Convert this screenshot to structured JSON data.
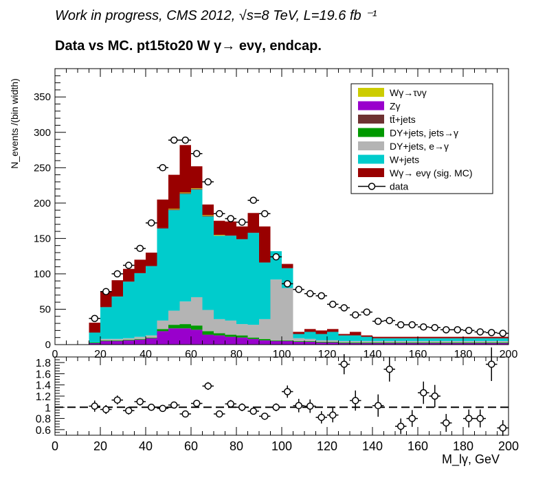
{
  "header": {
    "line1": "Work in progress, CMS 2012,   √s=8 TeV, L=19.6 fb ⁻¹",
    "line2": "Data vs MC.    pt15to20 W  γ→ eνγ, endcap."
  },
  "chart_data": [
    {
      "type": "bar",
      "subtype": "stacked-histogram",
      "ylabel": "N_events /(bin width)",
      "xlim": [
        0,
        200
      ],
      "ylim": [
        0,
        390
      ],
      "bin_edges": [
        15,
        20,
        25,
        30,
        35,
        40,
        45,
        50,
        55,
        60,
        65,
        70,
        75,
        80,
        85,
        90,
        95,
        100,
        105,
        110,
        115,
        120,
        125,
        130,
        135,
        140,
        145,
        150,
        155,
        160,
        165,
        170,
        175,
        180,
        185,
        190,
        195,
        200
      ],
      "x_ticks": [
        "0",
        "20",
        "40",
        "60",
        "80",
        "100",
        "120",
        "140",
        "160",
        "180",
        "200"
      ],
      "y_ticks": [
        "0",
        "50",
        "100",
        "150",
        "200",
        "250",
        "300",
        "350"
      ],
      "legend_position": "top-right",
      "series": [
        {
          "name": "W+jets",
          "color": "#00cccc",
          "stack_order": 3,
          "values": [
            14,
            45,
            60,
            80,
            90,
            98,
            130,
            142,
            152,
            152,
            132,
            118,
            120,
            120,
            130,
            80,
            40,
            28,
            6,
            10,
            9,
            12,
            8,
            8,
            6,
            4,
            4,
            4,
            4,
            4,
            4,
            4,
            4,
            4,
            4,
            4,
            4
          ]
        },
        {
          "name": "DY+jets, e→γ",
          "color": "#b4b4b4",
          "stack_order": 2,
          "values": [
            0,
            2,
            2,
            2,
            3,
            3,
            12,
            20,
            32,
            40,
            30,
            20,
            20,
            16,
            18,
            28,
            86,
            74,
            4,
            3,
            2,
            2,
            2,
            2,
            2,
            2,
            2,
            2,
            2,
            2,
            2,
            2,
            2,
            2,
            2,
            2,
            2
          ]
        },
        {
          "name": "DY+jets, jets→γ",
          "color": "#009900",
          "stack_order": 1,
          "values": [
            1,
            1,
            1,
            1,
            1,
            1,
            3,
            5,
            6,
            6,
            5,
            3,
            3,
            3,
            2,
            2,
            1,
            1,
            1,
            1,
            1,
            1,
            1,
            1,
            1,
            1,
            1,
            1,
            1,
            1,
            1,
            1,
            1,
            1,
            1,
            1,
            1
          ]
        },
        {
          "name": "tt̄+jets",
          "color": "#6e3232",
          "stack_order": 4,
          "values": [
            0,
            0,
            0,
            0,
            0,
            0,
            1,
            1,
            1,
            1,
            1,
            0,
            0,
            0,
            0,
            0,
            0,
            0,
            0,
            0,
            0,
            0,
            0,
            0,
            0,
            0,
            0,
            0,
            0,
            0,
            0,
            0,
            0,
            0,
            0,
            0,
            0
          ]
        },
        {
          "name": "Zγ",
          "color": "#9900cc",
          "stack_order": 0,
          "values": [
            2,
            5,
            5,
            6,
            7,
            9,
            19,
            23,
            23,
            21,
            14,
            13,
            11,
            10,
            8,
            6,
            5,
            5,
            4,
            4,
            3,
            3,
            2,
            2,
            2,
            2,
            2,
            2,
            2,
            2,
            2,
            2,
            2,
            2,
            2,
            2,
            2
          ]
        },
        {
          "name": "Wγ→τνγ",
          "color": "#cccc00",
          "stack_order": 5,
          "values": [
            0,
            0,
            0,
            0,
            0,
            0,
            0,
            1,
            1,
            1,
            1,
            1,
            0,
            0,
            0,
            0,
            0,
            0,
            0,
            0,
            0,
            0,
            0,
            0,
            0,
            0,
            0,
            0,
            0,
            0,
            0,
            0,
            0,
            0,
            0,
            0,
            0
          ]
        },
        {
          "name": "Wγ→ eνγ (sig. MC)",
          "color": "#990000",
          "stack_order": 6,
          "values": [
            14,
            22,
            23,
            18,
            19,
            19,
            40,
            48,
            67,
            31,
            15,
            20,
            20,
            18,
            28,
            51,
            0,
            6,
            3,
            4,
            5,
            4,
            2,
            5,
            2,
            2,
            2,
            2,
            2,
            2,
            2,
            2,
            2,
            2,
            2,
            2,
            2
          ]
        },
        {
          "name": "data",
          "color": "#000000",
          "x": [
            17.5,
            22.5,
            27.5,
            32.5,
            37.5,
            42.5,
            47.5,
            52.5,
            57.5,
            62.5,
            67.5,
            72.5,
            77.5,
            82.5,
            87.5,
            92.5,
            97.5,
            102.5,
            107.5,
            112.5,
            117.5,
            122.5,
            127.5,
            132.5,
            137.5,
            142.5,
            147.5,
            152.5,
            157.5,
            162.5,
            167.5,
            172.5,
            177.5,
            182.5,
            187.5,
            192.5,
            197.5
          ],
          "values": [
            37,
            75,
            100,
            112,
            136,
            172,
            250,
            289,
            289,
            270,
            230,
            185,
            178,
            173,
            204,
            185,
            124,
            86,
            78,
            72,
            69,
            57,
            52,
            42,
            46,
            33,
            34,
            28,
            28,
            25,
            24,
            21,
            21,
            20,
            18,
            17,
            16
          ]
        }
      ],
      "legend_entries": [
        "Wγ→τνγ",
        "Zγ",
        "tt̄+jets",
        "DY+jets, jets→γ",
        "DY+jets, e→γ",
        "W+jets",
        "Wγ→ eνγ (sig. MC)",
        "data"
      ]
    },
    {
      "type": "scatter",
      "subtype": "ratio",
      "xlabel": "M_lγ, GeV",
      "xlim": [
        0,
        200
      ],
      "ylim": [
        0.5,
        1.9
      ],
      "x_ticks": [
        "0",
        "20",
        "40",
        "60",
        "80",
        "100",
        "120",
        "140",
        "160",
        "180",
        "200"
      ],
      "y_ticks": [
        "0.6",
        "0.8",
        "1",
        "1.2",
        "1.4",
        "1.6",
        "1.8"
      ],
      "reference_line": 1,
      "x": [
        17.5,
        22.5,
        27.5,
        32.5,
        37.5,
        42.5,
        47.5,
        52.5,
        57.5,
        62.5,
        67.5,
        72.5,
        77.5,
        82.5,
        87.5,
        92.5,
        97.5,
        102.5,
        107.5,
        112.5,
        117.5,
        122.5,
        127.5,
        132.5,
        142.5,
        147.5,
        152.5,
        157.5,
        162.5,
        167.5,
        172.5,
        182.5,
        187.5,
        192.5,
        197.5
      ],
      "values": [
        1.02,
        0.96,
        1.13,
        0.94,
        1.1,
        1.0,
        0.98,
        1.04,
        0.88,
        1.07,
        1.38,
        0.88,
        1.06,
        1.0,
        0.93,
        0.84,
        1.0,
        1.28,
        1.03,
        1.02,
        0.82,
        0.86,
        1.77,
        1.12,
        1.03,
        1.68,
        0.66,
        0.8,
        1.26,
        1.2,
        0.72,
        0.8,
        0.8,
        1.77,
        0.63
      ],
      "errors": [
        0.1,
        0.08,
        0.08,
        0.07,
        0.07,
        0.06,
        0.05,
        0.05,
        0.05,
        0.05,
        0.07,
        0.06,
        0.07,
        0.07,
        0.06,
        0.05,
        0.07,
        0.11,
        0.12,
        0.12,
        0.11,
        0.13,
        0.18,
        0.18,
        0.2,
        0.22,
        0.14,
        0.15,
        0.2,
        0.2,
        0.16,
        0.16,
        0.16,
        0.3,
        0.14
      ]
    }
  ]
}
